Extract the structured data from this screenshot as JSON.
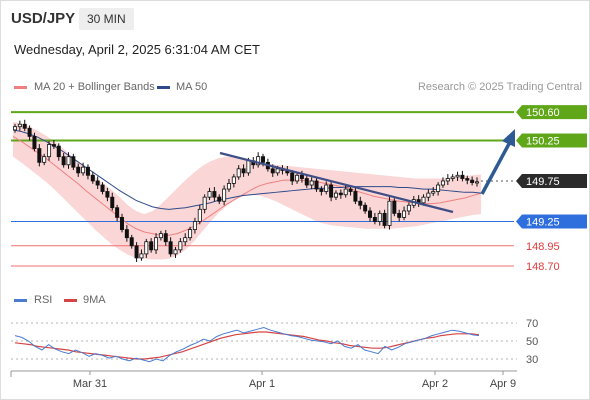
{
  "header": {
    "symbol": "USD/JPY",
    "timeframe": "30 MIN"
  },
  "datetime": "Wednesday, April 2, 2025 6:31:04 AM CET",
  "credit": "Research © 2025 Trading Central",
  "colors": {
    "ma20": "#f08080",
    "bollinger_fill": "#f9cfcf",
    "ma50": "#2e4a8b",
    "resistance": "#5fa619",
    "pivot": "#2f6fdd",
    "support": "#f07070",
    "candle_up": "#ffffff",
    "candle_down": "#111111",
    "arrow": "#2e5a94",
    "trendline": "#3f4f86",
    "rsi": "#4a7bd0",
    "rsi_ma": "#d64545"
  },
  "chart_data": [
    {
      "type": "candlestick",
      "legend": [
        {
          "name": "MA 20 + Bollinger Bands",
          "color": "#f08080"
        },
        {
          "name": "MA 50",
          "color": "#2e4a8b"
        }
      ],
      "x_ticks": [
        "Mar 31",
        "Apr 1",
        "Apr 2",
        "Apr 9"
      ],
      "ylim": [
        148.54,
        150.7
      ],
      "grid": false,
      "levels": [
        {
          "label": "150.60",
          "value": 150.6,
          "kind": "resistance"
        },
        {
          "label": "150.25",
          "value": 150.25,
          "kind": "resistance"
        },
        {
          "label": "149.75",
          "value": 149.75,
          "kind": "last_price"
        },
        {
          "label": "149.25",
          "value": 149.25,
          "kind": "pivot"
        },
        {
          "label": "148.95",
          "value": 148.95,
          "kind": "support"
        },
        {
          "label": "148.70",
          "value": 148.7,
          "kind": "support"
        }
      ],
      "closes": [
        150.42,
        150.45,
        150.4,
        150.3,
        150.15,
        149.98,
        150.05,
        150.2,
        150.18,
        150.05,
        149.95,
        150.05,
        149.92,
        149.85,
        149.92,
        149.82,
        149.75,
        149.7,
        149.62,
        149.55,
        149.42,
        149.3,
        149.15,
        149.05,
        148.95,
        148.8,
        148.85,
        149.0,
        148.9,
        149.05,
        149.1,
        149.0,
        148.85,
        148.9,
        149.0,
        149.05,
        149.15,
        149.25,
        149.4,
        149.55,
        149.62,
        149.55,
        149.5,
        149.65,
        149.72,
        149.8,
        149.9,
        149.85,
        150.0,
        149.95,
        150.05,
        149.98,
        149.9,
        149.85,
        149.9,
        149.88,
        149.85,
        149.75,
        149.82,
        149.78,
        149.7,
        149.75,
        149.65,
        149.62,
        149.7,
        149.55,
        149.6,
        149.58,
        149.65,
        149.62,
        149.5,
        149.45,
        149.38,
        149.3,
        149.25,
        149.35,
        149.2,
        149.5,
        149.35,
        149.3,
        149.38,
        149.45,
        149.52,
        149.48,
        149.55,
        149.6,
        149.62,
        149.7,
        149.75,
        149.78,
        149.8,
        149.82,
        149.78,
        149.76,
        149.73,
        149.74
      ],
      "ma20": [
        150.3,
        150.24,
        150.17,
        150.1,
        150.03,
        149.95,
        149.87,
        149.79,
        149.71,
        149.62,
        149.54,
        149.46,
        149.38,
        149.3,
        149.22,
        149.16,
        149.12,
        149.1,
        149.08,
        149.08,
        149.1,
        149.14,
        149.19,
        149.25,
        149.32,
        149.39,
        149.46,
        149.52,
        149.58,
        149.64,
        149.69,
        149.72,
        149.74,
        149.76,
        149.76,
        149.76,
        149.75,
        149.74,
        149.72,
        149.7,
        149.68,
        149.66,
        149.62,
        149.59,
        149.56,
        149.54,
        149.52,
        149.5,
        149.49,
        149.48,
        149.47,
        149.47,
        149.48,
        149.5,
        149.52,
        149.54,
        149.57,
        149.6
      ],
      "bb_upper": [
        150.48,
        150.46,
        150.42,
        150.37,
        150.31,
        150.24,
        150.16,
        150.07,
        149.98,
        149.89,
        149.8,
        149.72,
        149.64,
        149.55,
        149.45,
        149.38,
        149.34,
        149.38,
        149.46,
        149.56,
        149.66,
        149.76,
        149.85,
        149.93,
        149.99,
        150.03,
        150.05,
        150.04,
        150.01,
        149.99,
        149.97,
        149.96,
        149.95,
        149.94,
        149.93,
        149.92,
        149.91,
        149.9,
        149.89,
        149.88,
        149.87,
        149.86,
        149.85,
        149.84,
        149.83,
        149.82,
        149.81,
        149.8,
        149.79,
        149.78,
        149.78,
        149.78,
        149.78,
        149.79,
        149.8,
        149.81,
        149.82,
        149.83
      ],
      "bb_lower": [
        150.05,
        149.98,
        149.9,
        149.82,
        149.74,
        149.65,
        149.55,
        149.45,
        149.35,
        149.25,
        149.15,
        149.06,
        148.97,
        148.9,
        148.84,
        148.8,
        148.79,
        148.78,
        148.78,
        148.79,
        148.83,
        148.9,
        149.0,
        149.12,
        149.24,
        149.35,
        149.44,
        149.52,
        149.56,
        149.58,
        149.57,
        149.54,
        149.5,
        149.45,
        149.4,
        149.35,
        149.3,
        149.25,
        149.22,
        149.2,
        149.19,
        149.18,
        149.17,
        149.16,
        149.16,
        149.16,
        149.16,
        149.17,
        149.18,
        149.19,
        149.21,
        149.23,
        149.25,
        149.27,
        149.29,
        149.31,
        149.33,
        149.34
      ],
      "ma50": [
        150.38,
        150.36,
        150.33,
        150.29,
        150.24,
        150.18,
        150.12,
        150.05,
        149.98,
        149.91,
        149.84,
        149.77,
        149.7,
        149.63,
        149.57,
        149.51,
        149.47,
        149.43,
        149.41,
        149.4,
        149.41,
        149.42,
        149.44,
        149.46,
        149.48,
        149.51,
        149.53,
        149.55,
        149.57,
        149.58,
        149.59,
        149.6,
        149.61,
        149.62,
        149.63,
        149.64,
        149.65,
        149.66,
        149.66,
        149.67,
        149.67,
        149.68,
        149.68,
        149.68,
        149.68,
        149.68,
        149.68,
        149.67,
        149.67,
        149.66,
        149.65,
        149.65,
        149.64,
        149.63,
        149.62,
        149.61,
        149.61,
        149.6
      ]
    },
    {
      "type": "line",
      "legend": [
        {
          "name": "RSI",
          "color": "#4a7bd0"
        },
        {
          "name": "9MA",
          "color": "#d64545"
        }
      ],
      "ylim": [
        20,
        80
      ],
      "y_ticks": [
        "70",
        "50",
        "30"
      ],
      "series": [
        {
          "name": "RSI",
          "values": [
            56,
            54,
            50,
            44,
            40,
            46,
            41,
            38,
            36,
            40,
            37,
            33,
            36,
            34,
            31,
            33,
            30,
            28,
            31,
            29,
            27,
            30,
            28,
            34,
            38,
            41,
            45,
            48,
            52,
            50,
            55,
            58,
            60,
            62,
            59,
            61,
            63,
            65,
            62,
            60,
            58,
            56,
            55,
            53,
            51,
            50,
            49,
            47,
            50,
            44,
            42,
            46,
            40,
            38,
            36,
            44,
            40,
            43,
            47,
            49,
            51,
            53,
            56,
            58,
            60,
            62,
            61,
            59,
            57,
            56
          ]
        },
        {
          "name": "9MA",
          "values": [
            48,
            47,
            46,
            44,
            43,
            42,
            41,
            40,
            38,
            37,
            36,
            35,
            34,
            33,
            32,
            31,
            30,
            30,
            31,
            32,
            34,
            36,
            38,
            41,
            44,
            47,
            50,
            53,
            55,
            57,
            58,
            59,
            60,
            60,
            59,
            58,
            57,
            56,
            55,
            53,
            51,
            50,
            48,
            47,
            45,
            44,
            43,
            42,
            42,
            43,
            45,
            47,
            49,
            51,
            53,
            54,
            56,
            57,
            58,
            58,
            58,
            57
          ]
        }
      ]
    }
  ]
}
